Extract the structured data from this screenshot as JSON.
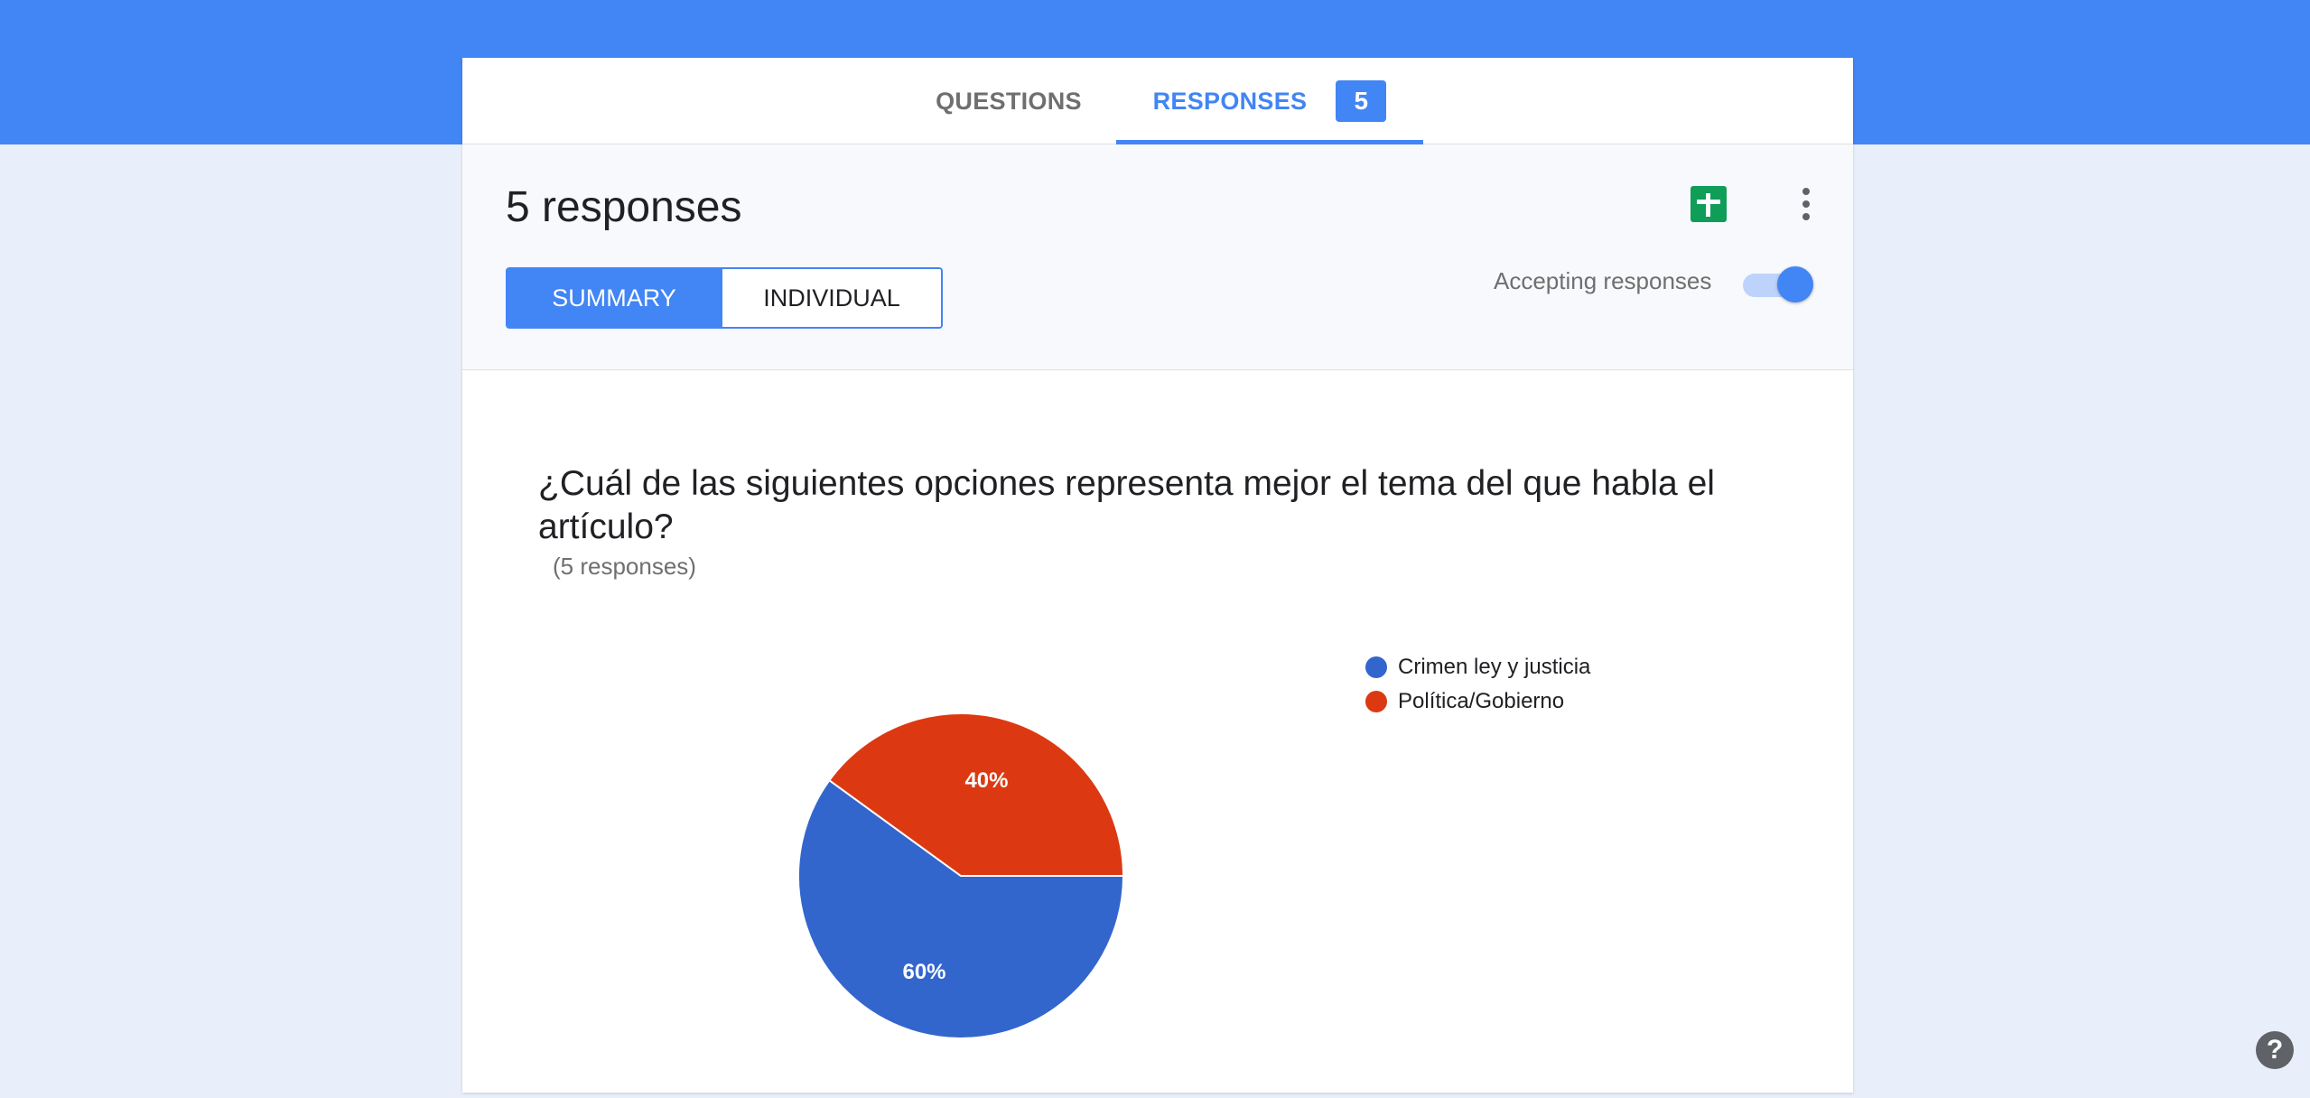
{
  "tabs": {
    "questions_label": "QUESTIONS",
    "responses_label": "RESPONSES",
    "responses_count": "5"
  },
  "header": {
    "title": "5 responses",
    "summary_label": "SUMMARY",
    "individual_label": "INDIVIDUAL",
    "accepting_label": "Accepting responses",
    "accepting_on": true
  },
  "question": {
    "title": "¿Cuál de las siguientes opciones representa mejor el tema del que habla el artículo?",
    "count": "(5 responses)"
  },
  "chart_data": {
    "type": "pie",
    "categories": [
      "Crimen ley y justicia",
      "Política/Gobierno"
    ],
    "values": [
      60,
      40
    ],
    "labels": [
      "60%",
      "40%"
    ],
    "colors": [
      "#3366cc",
      "#dc3912"
    ],
    "legend_position": "right"
  },
  "icons": {
    "sheets": "google-sheets-icon",
    "more": "more-vert-icon",
    "help": "help-icon"
  },
  "help": {
    "glyph": "?"
  }
}
